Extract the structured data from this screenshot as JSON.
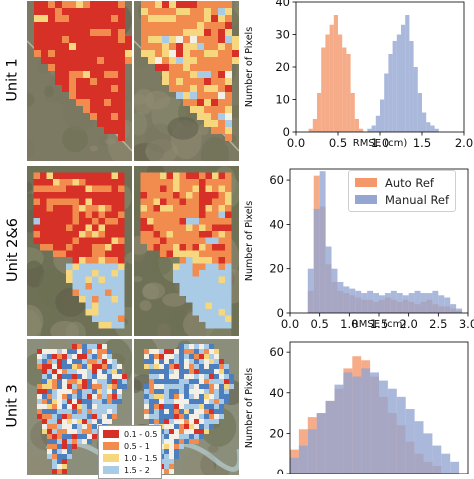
{
  "units": [
    {
      "label": "Unit 1"
    },
    {
      "label": "Unit 2&6"
    },
    {
      "label": "Unit 3"
    }
  ],
  "map_legend": [
    {
      "label": "0.1 - 0.5",
      "color": "#d73027"
    },
    {
      "label": "0.5 - 1",
      "color": "#f28b4e"
    },
    {
      "label": "1.0 - 1.5",
      "color": "#f6d77e"
    },
    {
      "label": "1.5 - 2",
      "color": "#a9cbe6"
    }
  ],
  "colors": {
    "auto": "#f4976b",
    "manual": "#95a6d2"
  },
  "chart_data": [
    {
      "type": "bar",
      "subtype": "histogram",
      "xlabel": "RMSE (cm)",
      "ylabel": "Number of Pixels",
      "xlim": [
        0.0,
        2.0
      ],
      "ylim": [
        0,
        40
      ],
      "xticks": [
        "0.0",
        "0.5",
        "1.0",
        "1.5",
        "2.0"
      ],
      "yticks": [
        "0",
        "10",
        "20",
        "30",
        "40"
      ],
      "bin_width": 0.05,
      "series": [
        {
          "name": "Auto Ref",
          "bin_start": 0.15,
          "values": [
            1,
            4,
            12,
            26,
            30,
            33,
            36,
            30,
            26,
            24,
            12,
            4,
            1
          ]
        },
        {
          "name": "Manual Ref",
          "bin_start": 0.85,
          "values": [
            1,
            2,
            5,
            10,
            18,
            24,
            28,
            30,
            33,
            36,
            28,
            20,
            12,
            6,
            3,
            2,
            1
          ]
        }
      ]
    },
    {
      "type": "bar",
      "subtype": "histogram",
      "xlabel": "RMSE (cm)",
      "ylabel": "Number of Pixels",
      "xlim": [
        0.0,
        3.0
      ],
      "ylim": [
        0,
        65
      ],
      "xticks": [
        "0.0",
        "0.5",
        "1.0",
        "1.5",
        "2.0",
        "2.5",
        "3.0"
      ],
      "yticks": [
        "0",
        "20",
        "40",
        "60"
      ],
      "bin_width": 0.1,
      "legend": "top-right",
      "series": [
        {
          "name": "Auto Ref",
          "bin_start": 0.3,
          "values": [
            10,
            62,
            48,
            22,
            14,
            10,
            9,
            8,
            7,
            6,
            6,
            5,
            6,
            7,
            6,
            5,
            6,
            5,
            4,
            5,
            6,
            4,
            3,
            3,
            2,
            1
          ]
        },
        {
          "name": "Manual Ref",
          "bin_start": 0.3,
          "values": [
            20,
            47,
            64,
            30,
            20,
            14,
            12,
            11,
            10,
            9,
            10,
            9,
            8,
            9,
            10,
            9,
            8,
            9,
            10,
            9,
            9,
            10,
            8,
            7,
            4,
            2
          ]
        }
      ]
    },
    {
      "type": "bar",
      "subtype": "histogram",
      "ylabel": "Number of Pixels",
      "ylim": [
        0,
        65
      ],
      "yticks": [
        "0",
        "20",
        "40",
        "60"
      ],
      "bin_width": 0.05,
      "series": [
        {
          "name": "Auto Ref",
          "bin_start": 0.0,
          "values": [
            12,
            22,
            28,
            30,
            36,
            42,
            52,
            58,
            56,
            48,
            38,
            30,
            24,
            16,
            10,
            6,
            4
          ]
        },
        {
          "name": "Manual Ref",
          "bin_start": 0.0,
          "values": [
            8,
            14,
            22,
            30,
            36,
            44,
            50,
            48,
            52,
            50,
            46,
            42,
            38,
            32,
            26,
            20,
            14,
            10,
            6
          ]
        }
      ]
    }
  ]
}
